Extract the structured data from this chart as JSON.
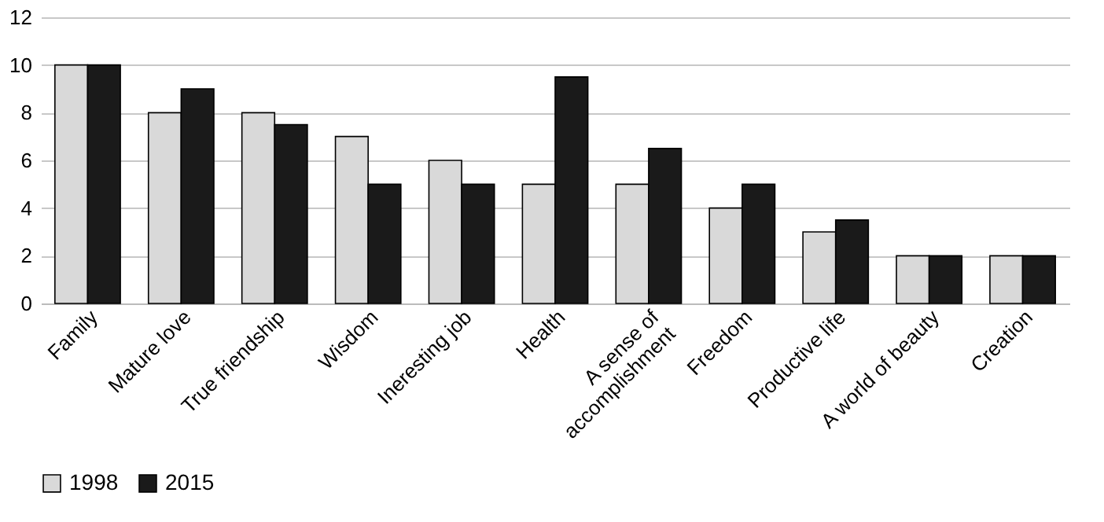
{
  "chart_data": {
    "type": "bar",
    "categories": [
      "Family",
      "Mature love",
      "True friendship",
      "Wisdom",
      "Ineresting job",
      "Health",
      "A sense of accomplishment",
      "Freedom",
      "Productive life",
      "A world of beauty",
      "Creation"
    ],
    "series": [
      {
        "name": "1998",
        "color": "#d9d9d9",
        "values": [
          10,
          8,
          8,
          7,
          6,
          5,
          5,
          4,
          3,
          2,
          2
        ]
      },
      {
        "name": "2015",
        "color": "#1a1a1a",
        "values": [
          10,
          9,
          7.5,
          5,
          5,
          9.5,
          6.5,
          5,
          3.5,
          2,
          2
        ]
      }
    ],
    "ylim": [
      0,
      12
    ],
    "yticks": [
      0,
      2,
      4,
      6,
      8,
      10,
      12
    ],
    "grid": "y",
    "legend": "bottom"
  }
}
